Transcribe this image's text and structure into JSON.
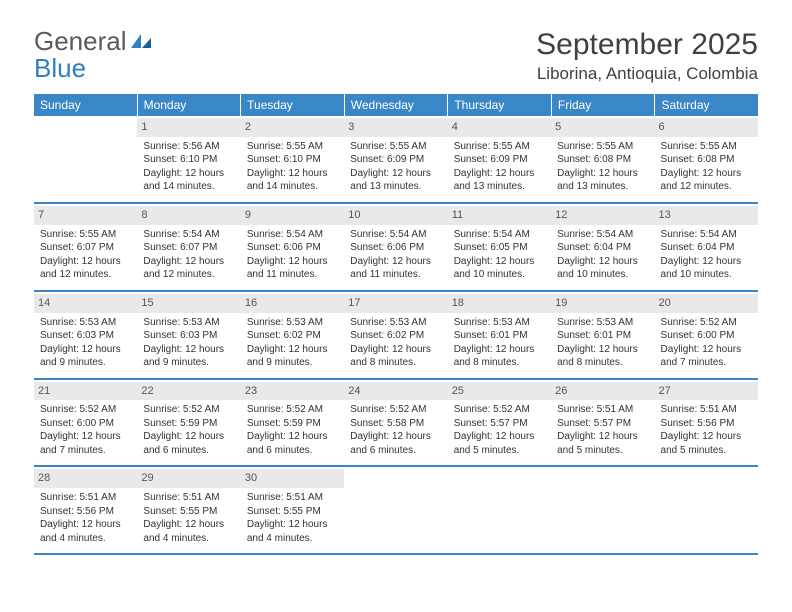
{
  "logo": {
    "general": "General",
    "blue": "Blue"
  },
  "header": {
    "month_title": "September 2025",
    "location": "Liborina, Antioquia, Colombia"
  },
  "colors": {
    "header_bg": "#3a87c8",
    "header_text": "#ffffff",
    "daynum_bg": "#e9e9e9",
    "text": "#333333",
    "logo_blue": "#2f7fc1",
    "week_divider": "#3a87c8"
  },
  "day_headers": [
    "Sunday",
    "Monday",
    "Tuesday",
    "Wednesday",
    "Thursday",
    "Friday",
    "Saturday"
  ],
  "weeks": [
    [
      {
        "day": "",
        "sunrise": "",
        "sunset": "",
        "daylight": ""
      },
      {
        "day": "1",
        "sunrise": "Sunrise: 5:56 AM",
        "sunset": "Sunset: 6:10 PM",
        "daylight": "Daylight: 12 hours and 14 minutes."
      },
      {
        "day": "2",
        "sunrise": "Sunrise: 5:55 AM",
        "sunset": "Sunset: 6:10 PM",
        "daylight": "Daylight: 12 hours and 14 minutes."
      },
      {
        "day": "3",
        "sunrise": "Sunrise: 5:55 AM",
        "sunset": "Sunset: 6:09 PM",
        "daylight": "Daylight: 12 hours and 13 minutes."
      },
      {
        "day": "4",
        "sunrise": "Sunrise: 5:55 AM",
        "sunset": "Sunset: 6:09 PM",
        "daylight": "Daylight: 12 hours and 13 minutes."
      },
      {
        "day": "5",
        "sunrise": "Sunrise: 5:55 AM",
        "sunset": "Sunset: 6:08 PM",
        "daylight": "Daylight: 12 hours and 13 minutes."
      },
      {
        "day": "6",
        "sunrise": "Sunrise: 5:55 AM",
        "sunset": "Sunset: 6:08 PM",
        "daylight": "Daylight: 12 hours and 12 minutes."
      }
    ],
    [
      {
        "day": "7",
        "sunrise": "Sunrise: 5:55 AM",
        "sunset": "Sunset: 6:07 PM",
        "daylight": "Daylight: 12 hours and 12 minutes."
      },
      {
        "day": "8",
        "sunrise": "Sunrise: 5:54 AM",
        "sunset": "Sunset: 6:07 PM",
        "daylight": "Daylight: 12 hours and 12 minutes."
      },
      {
        "day": "9",
        "sunrise": "Sunrise: 5:54 AM",
        "sunset": "Sunset: 6:06 PM",
        "daylight": "Daylight: 12 hours and 11 minutes."
      },
      {
        "day": "10",
        "sunrise": "Sunrise: 5:54 AM",
        "sunset": "Sunset: 6:06 PM",
        "daylight": "Daylight: 12 hours and 11 minutes."
      },
      {
        "day": "11",
        "sunrise": "Sunrise: 5:54 AM",
        "sunset": "Sunset: 6:05 PM",
        "daylight": "Daylight: 12 hours and 10 minutes."
      },
      {
        "day": "12",
        "sunrise": "Sunrise: 5:54 AM",
        "sunset": "Sunset: 6:04 PM",
        "daylight": "Daylight: 12 hours and 10 minutes."
      },
      {
        "day": "13",
        "sunrise": "Sunrise: 5:54 AM",
        "sunset": "Sunset: 6:04 PM",
        "daylight": "Daylight: 12 hours and 10 minutes."
      }
    ],
    [
      {
        "day": "14",
        "sunrise": "Sunrise: 5:53 AM",
        "sunset": "Sunset: 6:03 PM",
        "daylight": "Daylight: 12 hours and 9 minutes."
      },
      {
        "day": "15",
        "sunrise": "Sunrise: 5:53 AM",
        "sunset": "Sunset: 6:03 PM",
        "daylight": "Daylight: 12 hours and 9 minutes."
      },
      {
        "day": "16",
        "sunrise": "Sunrise: 5:53 AM",
        "sunset": "Sunset: 6:02 PM",
        "daylight": "Daylight: 12 hours and 9 minutes."
      },
      {
        "day": "17",
        "sunrise": "Sunrise: 5:53 AM",
        "sunset": "Sunset: 6:02 PM",
        "daylight": "Daylight: 12 hours and 8 minutes."
      },
      {
        "day": "18",
        "sunrise": "Sunrise: 5:53 AM",
        "sunset": "Sunset: 6:01 PM",
        "daylight": "Daylight: 12 hours and 8 minutes."
      },
      {
        "day": "19",
        "sunrise": "Sunrise: 5:53 AM",
        "sunset": "Sunset: 6:01 PM",
        "daylight": "Daylight: 12 hours and 8 minutes."
      },
      {
        "day": "20",
        "sunrise": "Sunrise: 5:52 AM",
        "sunset": "Sunset: 6:00 PM",
        "daylight": "Daylight: 12 hours and 7 minutes."
      }
    ],
    [
      {
        "day": "21",
        "sunrise": "Sunrise: 5:52 AM",
        "sunset": "Sunset: 6:00 PM",
        "daylight": "Daylight: 12 hours and 7 minutes."
      },
      {
        "day": "22",
        "sunrise": "Sunrise: 5:52 AM",
        "sunset": "Sunset: 5:59 PM",
        "daylight": "Daylight: 12 hours and 6 minutes."
      },
      {
        "day": "23",
        "sunrise": "Sunrise: 5:52 AM",
        "sunset": "Sunset: 5:59 PM",
        "daylight": "Daylight: 12 hours and 6 minutes."
      },
      {
        "day": "24",
        "sunrise": "Sunrise: 5:52 AM",
        "sunset": "Sunset: 5:58 PM",
        "daylight": "Daylight: 12 hours and 6 minutes."
      },
      {
        "day": "25",
        "sunrise": "Sunrise: 5:52 AM",
        "sunset": "Sunset: 5:57 PM",
        "daylight": "Daylight: 12 hours and 5 minutes."
      },
      {
        "day": "26",
        "sunrise": "Sunrise: 5:51 AM",
        "sunset": "Sunset: 5:57 PM",
        "daylight": "Daylight: 12 hours and 5 minutes."
      },
      {
        "day": "27",
        "sunrise": "Sunrise: 5:51 AM",
        "sunset": "Sunset: 5:56 PM",
        "daylight": "Daylight: 12 hours and 5 minutes."
      }
    ],
    [
      {
        "day": "28",
        "sunrise": "Sunrise: 5:51 AM",
        "sunset": "Sunset: 5:56 PM",
        "daylight": "Daylight: 12 hours and 4 minutes."
      },
      {
        "day": "29",
        "sunrise": "Sunrise: 5:51 AM",
        "sunset": "Sunset: 5:55 PM",
        "daylight": "Daylight: 12 hours and 4 minutes."
      },
      {
        "day": "30",
        "sunrise": "Sunrise: 5:51 AM",
        "sunset": "Sunset: 5:55 PM",
        "daylight": "Daylight: 12 hours and 4 minutes."
      },
      {
        "day": "",
        "sunrise": "",
        "sunset": "",
        "daylight": ""
      },
      {
        "day": "",
        "sunrise": "",
        "sunset": "",
        "daylight": ""
      },
      {
        "day": "",
        "sunrise": "",
        "sunset": "",
        "daylight": ""
      },
      {
        "day": "",
        "sunrise": "",
        "sunset": "",
        "daylight": ""
      }
    ]
  ]
}
